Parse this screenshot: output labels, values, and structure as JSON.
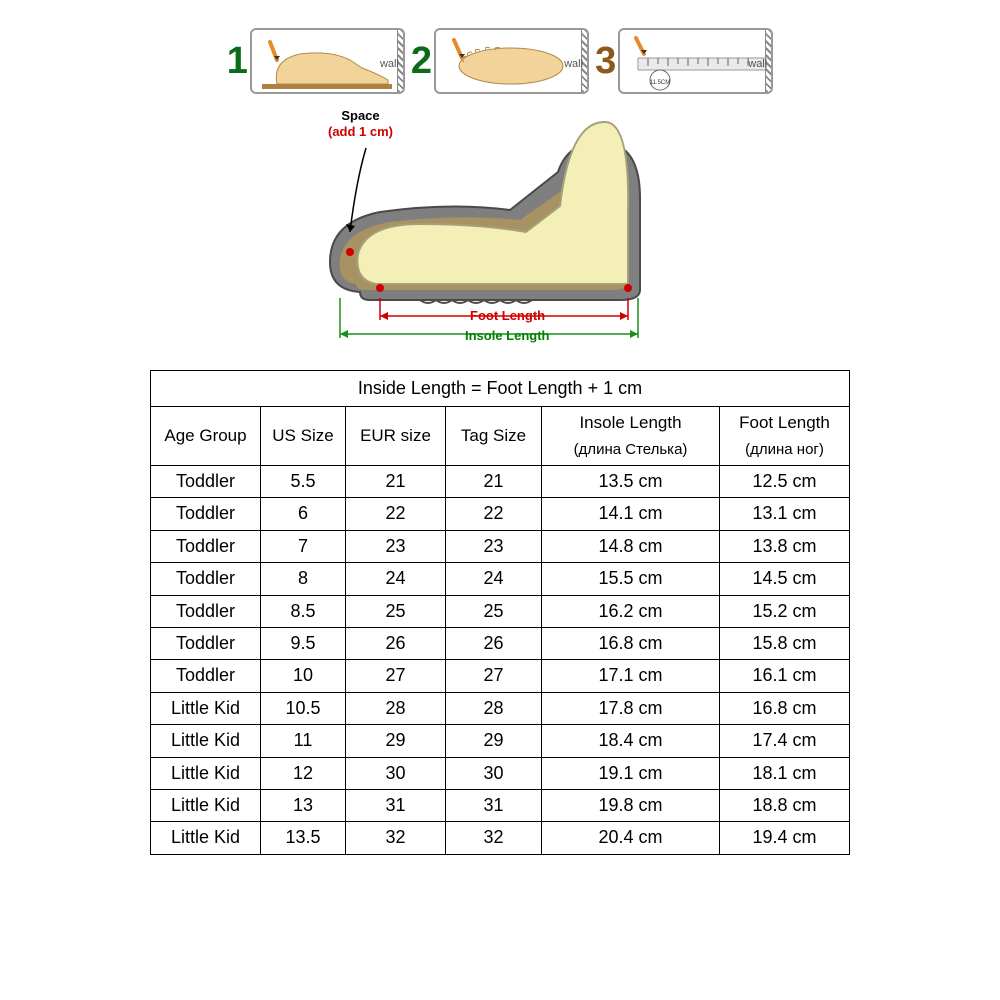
{
  "steps": {
    "items": [
      {
        "num": "1",
        "num_color": "#0b6b1a",
        "wall": "wall"
      },
      {
        "num": "2",
        "num_color": "#0b6b1a",
        "wall": "wall"
      },
      {
        "num": "3",
        "num_color": "#8b5a1a",
        "wall": "wall",
        "small_label": "11.5CM"
      }
    ],
    "colors": {
      "pencil": "#e78b2a",
      "foot_fill": "#f2d49a",
      "foot_outline": "#b08b4a",
      "board": "#b08040",
      "ruler": "#cfcfcf"
    }
  },
  "diagram": {
    "space_label": "Space",
    "space_sub": "(add 1 cm)",
    "foot_len": "Foot Length",
    "insole_len": "Insole Length",
    "colors": {
      "sole": "#7f7f7f",
      "foot": "#f4efb6",
      "foot_outline": "#a6a07a",
      "red": "#d00000",
      "green": "#1a8f1a",
      "inner_sole": "#c9a24d"
    }
  },
  "table": {
    "title": "Inside Length = Foot Length + 1 cm",
    "headers": {
      "age": "Age Group",
      "us": "US Size",
      "eur": "EUR size",
      "tag": "Tag Size",
      "insole": "Insole Length",
      "insole_sub": "(длина Стелька)",
      "foot": "Foot Length",
      "foot_sub": "(длина ног)"
    },
    "rows": [
      {
        "age": "Toddler",
        "us": "5.5",
        "eur": "21",
        "tag": "21",
        "insole": "13.5 cm",
        "foot": "12.5 cm"
      },
      {
        "age": "Toddler",
        "us": "6",
        "eur": "22",
        "tag": "22",
        "insole": "14.1 cm",
        "foot": "13.1 cm"
      },
      {
        "age": "Toddler",
        "us": "7",
        "eur": "23",
        "tag": "23",
        "insole": "14.8 cm",
        "foot": "13.8 cm"
      },
      {
        "age": "Toddler",
        "us": "8",
        "eur": "24",
        "tag": "24",
        "insole": "15.5 cm",
        "foot": "14.5 cm"
      },
      {
        "age": "Toddler",
        "us": "8.5",
        "eur": "25",
        "tag": "25",
        "insole": "16.2 cm",
        "foot": "15.2 cm"
      },
      {
        "age": "Toddler",
        "us": "9.5",
        "eur": "26",
        "tag": "26",
        "insole": "16.8 cm",
        "foot": "15.8 cm"
      },
      {
        "age": "Toddler",
        "us": "10",
        "eur": "27",
        "tag": "27",
        "insole": "17.1 cm",
        "foot": "16.1 cm"
      },
      {
        "age": "Little Kid",
        "us": "10.5",
        "eur": "28",
        "tag": "28",
        "insole": "17.8 cm",
        "foot": "16.8 cm"
      },
      {
        "age": "Little Kid",
        "us": "11",
        "eur": "29",
        "tag": "29",
        "insole": "18.4 cm",
        "foot": "17.4 cm"
      },
      {
        "age": "Little Kid",
        "us": "12",
        "eur": "30",
        "tag": "30",
        "insole": "19.1 cm",
        "foot": "18.1 cm"
      },
      {
        "age": "Little Kid",
        "us": "13",
        "eur": "31",
        "tag": "31",
        "insole": "19.8 cm",
        "foot": "18.8 cm"
      },
      {
        "age": "Little Kid",
        "us": "13.5",
        "eur": "32",
        "tag": "32",
        "insole": "20.4 cm",
        "foot": "19.4 cm"
      }
    ]
  }
}
